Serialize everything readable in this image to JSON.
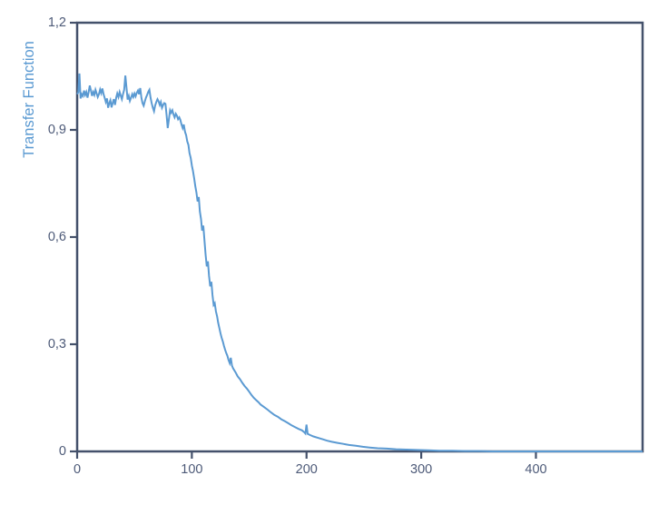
{
  "figure": {
    "background": "#ffffff"
  },
  "colors": {
    "line": "#5b9ad2",
    "axis": "#44516b",
    "tick_label": "#4d5a78",
    "ylabel": "#5b9ad2"
  },
  "chart_data": {
    "type": "line",
    "title": "",
    "xlabel": "",
    "ylabel": "Transfer Function",
    "xlim": [
      0,
      493
    ],
    "ylim": [
      0,
      1.2
    ],
    "grid": false,
    "legend": "none",
    "frame": "full-box",
    "tick_style": "outward",
    "x_ticks": {
      "values": [
        0,
        100,
        200,
        300,
        400
      ],
      "labels": [
        "0",
        "100",
        "200",
        "300",
        "400"
      ]
    },
    "y_ticks": {
      "values": [
        0,
        0.3,
        0.6,
        0.9,
        1.2
      ],
      "labels": [
        "0",
        "0,3",
        "0,6",
        "0,9",
        "1,2"
      ]
    },
    "series": [
      {
        "name": "Transfer Function",
        "points": [
          [
            0,
            1.0
          ],
          [
            1,
            1.005
          ],
          [
            2,
            1.058
          ],
          [
            3,
            0.988
          ],
          [
            4,
            1.0
          ],
          [
            5,
            0.995
          ],
          [
            6,
            1.01
          ],
          [
            7,
            0.998
          ],
          [
            8,
            1.006
          ],
          [
            9,
            0.99
          ],
          [
            10,
            1.005
          ],
          [
            11,
            1.024
          ],
          [
            12,
            1.01
          ],
          [
            13,
            0.995
          ],
          [
            14,
            1.006
          ],
          [
            15,
            0.998
          ],
          [
            16,
            1.012
          ],
          [
            17,
            1.002
          ],
          [
            18,
            0.992
          ],
          [
            19,
            1.0
          ],
          [
            20,
            1.013
          ],
          [
            21,
            1.003
          ],
          [
            22,
            1.016
          ],
          [
            23,
            1.0
          ],
          [
            24,
            0.99
          ],
          [
            25,
            0.978
          ],
          [
            26,
            0.988
          ],
          [
            27,
            0.962
          ],
          [
            28,
            0.975
          ],
          [
            29,
            0.983
          ],
          [
            30,
            0.963
          ],
          [
            31,
            0.976
          ],
          [
            32,
            0.986
          ],
          [
            33,
            0.97
          ],
          [
            34,
            0.99
          ],
          [
            35,
            1.002
          ],
          [
            36,
            0.992
          ],
          [
            37,
            1.006
          ],
          [
            38,
            0.996
          ],
          [
            39,
            0.986
          ],
          [
            40,
            1.0
          ],
          [
            41,
            1.012
          ],
          [
            42,
            1.052
          ],
          [
            43,
            1.02
          ],
          [
            44,
            0.985
          ],
          [
            45,
            0.995
          ],
          [
            46,
            0.981
          ],
          [
            47,
            0.99
          ],
          [
            48,
            1.0
          ],
          [
            49,
            0.992
          ],
          [
            50,
            1.002
          ],
          [
            51,
            0.994
          ],
          [
            52,
            1.004
          ],
          [
            53,
            1.01
          ],
          [
            54,
            1.0
          ],
          [
            55,
            1.017
          ],
          [
            56,
            0.99
          ],
          [
            57,
            0.975
          ],
          [
            58,
            0.968
          ],
          [
            59,
            0.98
          ],
          [
            60,
            0.99
          ],
          [
            61,
            0.998
          ],
          [
            62,
            1.006
          ],
          [
            63,
            1.012
          ],
          [
            64,
            0.99
          ],
          [
            65,
            0.975
          ],
          [
            66,
            0.962
          ],
          [
            67,
            0.952
          ],
          [
            68,
            0.968
          ],
          [
            69,
            0.978
          ],
          [
            70,
            0.986
          ],
          [
            71,
            0.98
          ],
          [
            72,
            0.97
          ],
          [
            73,
            0.978
          ],
          [
            74,
            0.962
          ],
          [
            75,
            0.97
          ],
          [
            76,
            0.975
          ],
          [
            77,
            0.973
          ],
          [
            78,
            0.94
          ],
          [
            79,
            0.905
          ],
          [
            80,
            0.93
          ],
          [
            81,
            0.955
          ],
          [
            82,
            0.948
          ],
          [
            83,
            0.955
          ],
          [
            84,
            0.943
          ],
          [
            85,
            0.935
          ],
          [
            86,
            0.945
          ],
          [
            87,
            0.94
          ],
          [
            88,
            0.93
          ],
          [
            89,
            0.935
          ],
          [
            90,
            0.928
          ],
          [
            91,
            0.915
          ],
          [
            92,
            0.905
          ],
          [
            93,
            0.915
          ],
          [
            94,
            0.895
          ],
          [
            95,
            0.885
          ],
          [
            96,
            0.868
          ],
          [
            97,
            0.858
          ],
          [
            98,
            0.835
          ],
          [
            99,
            0.822
          ],
          [
            100,
            0.8
          ],
          [
            101,
            0.785
          ],
          [
            102,
            0.765
          ],
          [
            103,
            0.742
          ],
          [
            104,
            0.725
          ],
          [
            105,
            0.7
          ],
          [
            106,
            0.712
          ],
          [
            107,
            0.672
          ],
          [
            108,
            0.65
          ],
          [
            109,
            0.618
          ],
          [
            110,
            0.632
          ],
          [
            111,
            0.59
          ],
          [
            112,
            0.552
          ],
          [
            113,
            0.518
          ],
          [
            114,
            0.532
          ],
          [
            115,
            0.492
          ],
          [
            116,
            0.462
          ],
          [
            117,
            0.475
          ],
          [
            118,
            0.438
          ],
          [
            119,
            0.41
          ],
          [
            120,
            0.415
          ],
          [
            121,
            0.392
          ],
          [
            122,
            0.378
          ],
          [
            123,
            0.36
          ],
          [
            124,
            0.345
          ],
          [
            125,
            0.33
          ],
          [
            126,
            0.318
          ],
          [
            127,
            0.308
          ],
          [
            128,
            0.295
          ],
          [
            129,
            0.285
          ],
          [
            130,
            0.275
          ],
          [
            131,
            0.268
          ],
          [
            132,
            0.256
          ],
          [
            133,
            0.247
          ],
          [
            134,
            0.262
          ],
          [
            135,
            0.24
          ],
          [
            136,
            0.232
          ],
          [
            138,
            0.222
          ],
          [
            140,
            0.21
          ],
          [
            142,
            0.202
          ],
          [
            144,
            0.192
          ],
          [
            146,
            0.183
          ],
          [
            148,
            0.176
          ],
          [
            150,
            0.167
          ],
          [
            152,
            0.158
          ],
          [
            154,
            0.15
          ],
          [
            156,
            0.144
          ],
          [
            158,
            0.138
          ],
          [
            160,
            0.131
          ],
          [
            163,
            0.124
          ],
          [
            166,
            0.117
          ],
          [
            169,
            0.109
          ],
          [
            172,
            0.102
          ],
          [
            175,
            0.097
          ],
          [
            178,
            0.09
          ],
          [
            181,
            0.085
          ],
          [
            184,
            0.079
          ],
          [
            187,
            0.073
          ],
          [
            190,
            0.068
          ],
          [
            193,
            0.063
          ],
          [
            196,
            0.059
          ],
          [
            198,
            0.054
          ],
          [
            199,
            0.05
          ],
          [
            200,
            0.075
          ],
          [
            201,
            0.049
          ],
          [
            203,
            0.046
          ],
          [
            206,
            0.042
          ],
          [
            210,
            0.038
          ],
          [
            214,
            0.034
          ],
          [
            218,
            0.03
          ],
          [
            222,
            0.027
          ],
          [
            227,
            0.024
          ],
          [
            232,
            0.021
          ],
          [
            237,
            0.018
          ],
          [
            243,
            0.016
          ],
          [
            249,
            0.013
          ],
          [
            255,
            0.011
          ],
          [
            262,
            0.009
          ],
          [
            270,
            0.008
          ],
          [
            278,
            0.006
          ],
          [
            287,
            0.005
          ],
          [
            296,
            0.004
          ],
          [
            306,
            0.003
          ],
          [
            316,
            0.002
          ],
          [
            327,
            0.002
          ],
          [
            338,
            0.001
          ],
          [
            350,
            0.001
          ],
          [
            362,
            0.0
          ],
          [
            380,
            0.0
          ],
          [
            400,
            0.0
          ],
          [
            420,
            0.0
          ],
          [
            440,
            0.0
          ],
          [
            460,
            0.0
          ],
          [
            480,
            0.0
          ],
          [
            493,
            0.0
          ]
        ]
      }
    ]
  }
}
